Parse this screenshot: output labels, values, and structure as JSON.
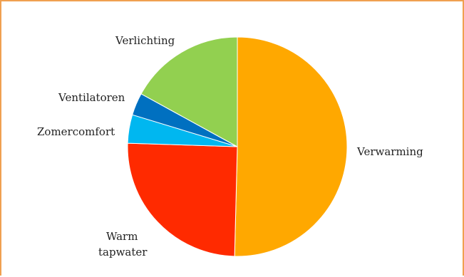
{
  "chart_data": {
    "type": "pie",
    "title": "",
    "labels": [
      "Verwarming",
      "Warm tapwater",
      "Zomercomfort",
      "Ventilatoren",
      "Verlichting"
    ],
    "values": [
      50.4,
      25.1,
      4.2,
      3.3,
      17.0
    ],
    "colors": [
      "#ffa800",
      "#ff2a00",
      "#00b7f0",
      "#0070c0",
      "#92d050"
    ],
    "legend": "none",
    "label_text": {
      "verwarming": "Verwarming",
      "warm_tapwater_line1": "Warm",
      "warm_tapwater_line2": "tapwater",
      "zomercomfort": "Zomercomfort",
      "ventilatoren": "Ventilatoren",
      "verlichting": "Verlichting"
    }
  }
}
